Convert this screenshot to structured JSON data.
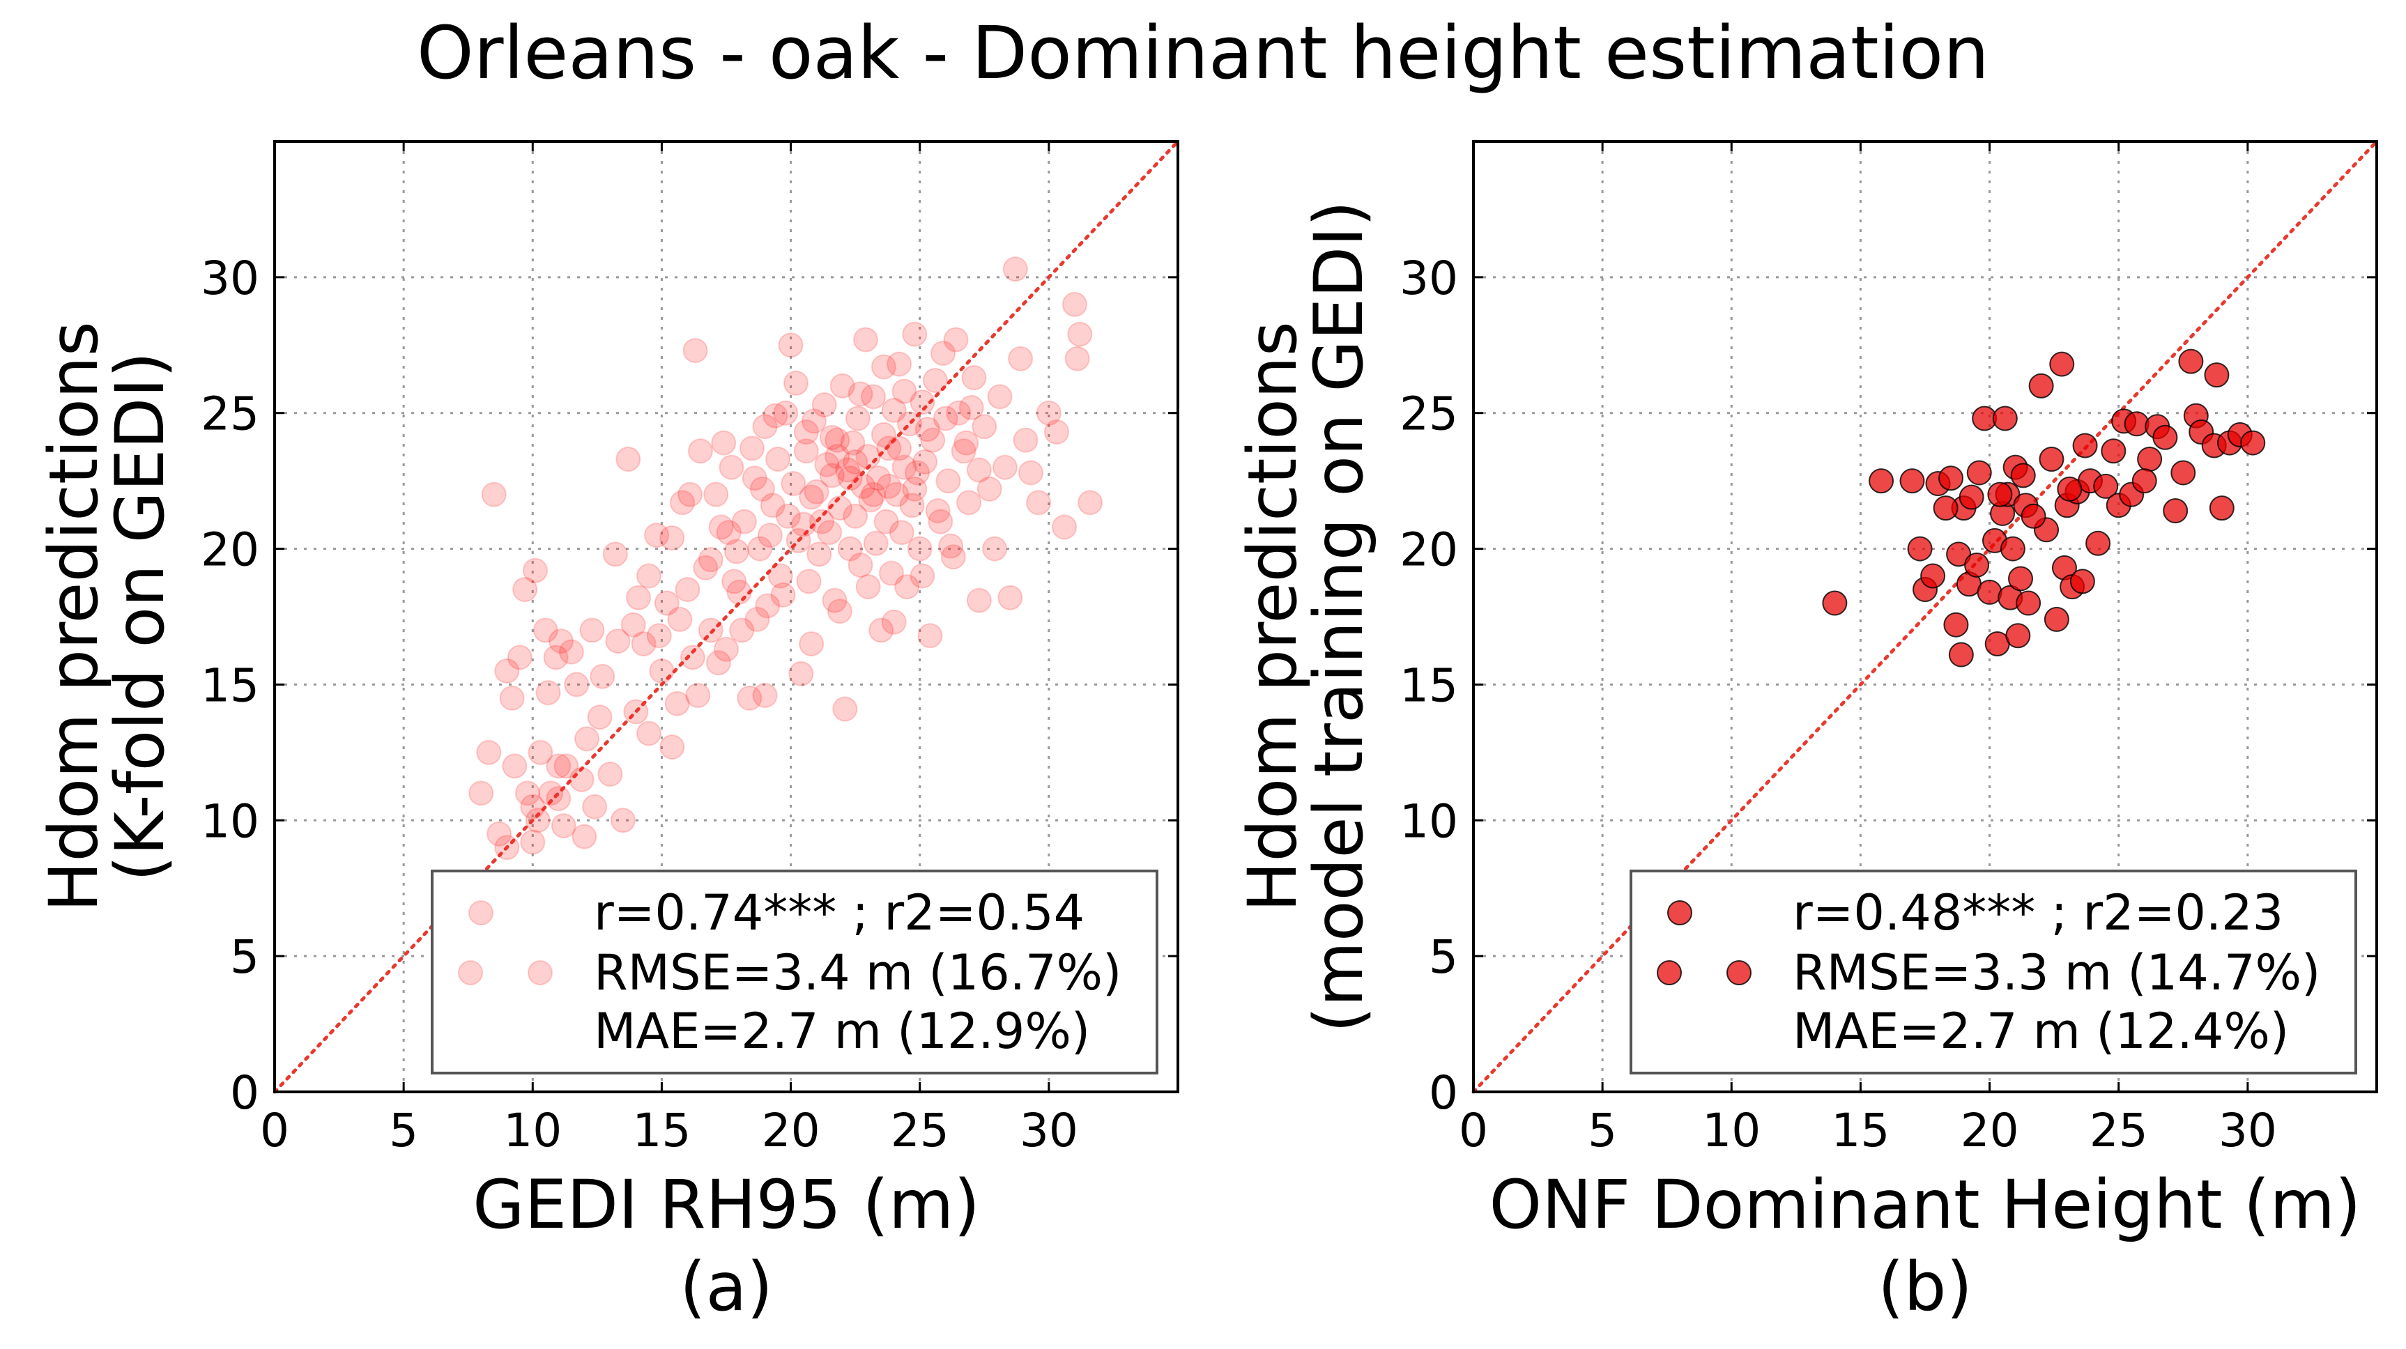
{
  "figure_title": "Orleans - oak - Dominant height estimation",
  "chart_data": [
    {
      "type": "scatter",
      "panel_label": "(a)",
      "title": "",
      "xlabel": "GEDI RH95 (m)",
      "ylabel_line1": "Hdom predictions",
      "ylabel_line2": "(K-fold on GEDI)",
      "xlim": [
        0,
        35
      ],
      "ylim": [
        0,
        35
      ],
      "xticks": [
        0,
        5,
        10,
        15,
        20,
        25,
        30
      ],
      "yticks": [
        0,
        5,
        10,
        15,
        20,
        25,
        30
      ],
      "grid": true,
      "identity_line": true,
      "marker_color": "#ff2a2a",
      "marker_opacity": 0.22,
      "legend_position": "lower-right",
      "legend": {
        "line1": "r=0.74*** ; r2=0.54",
        "line2": "RMSE=3.4 m (16.7%)",
        "line3": "MAE=2.7 m (12.9%)"
      },
      "points": [
        [
          8.5,
          22.0
        ],
        [
          8.0,
          11.0
        ],
        [
          8.3,
          12.5
        ],
        [
          8.7,
          9.5
        ],
        [
          9.0,
          9.0
        ],
        [
          9.0,
          15.5
        ],
        [
          9.2,
          14.5
        ],
        [
          9.3,
          12.0
        ],
        [
          9.5,
          16.0
        ],
        [
          9.7,
          18.5
        ],
        [
          9.8,
          11.0
        ],
        [
          10.0,
          10.5
        ],
        [
          10.0,
          9.2
        ],
        [
          10.1,
          19.2
        ],
        [
          10.2,
          10.0
        ],
        [
          10.3,
          12.5
        ],
        [
          10.5,
          17.0
        ],
        [
          10.6,
          14.7
        ],
        [
          10.7,
          11.0
        ],
        [
          10.9,
          16.0
        ],
        [
          11.0,
          12.0
        ],
        [
          11.0,
          10.8
        ],
        [
          11.1,
          16.6
        ],
        [
          11.2,
          9.8
        ],
        [
          11.3,
          12.0
        ],
        [
          11.5,
          16.2
        ],
        [
          11.7,
          15.0
        ],
        [
          11.9,
          11.5
        ],
        [
          12.0,
          9.4
        ],
        [
          12.1,
          13.0
        ],
        [
          12.3,
          17.0
        ],
        [
          12.4,
          10.5
        ],
        [
          12.7,
          15.3
        ],
        [
          13.0,
          11.7
        ],
        [
          13.2,
          19.8
        ],
        [
          13.5,
          10.0
        ],
        [
          13.7,
          23.3
        ],
        [
          13.9,
          17.2
        ],
        [
          14.0,
          14.0
        ],
        [
          14.3,
          16.5
        ],
        [
          14.5,
          19.0
        ],
        [
          14.8,
          20.5
        ],
        [
          15.0,
          15.5
        ],
        [
          15.2,
          18.0
        ],
        [
          15.4,
          12.7
        ],
        [
          15.6,
          14.3
        ],
        [
          15.8,
          21.7
        ],
        [
          16.0,
          18.5
        ],
        [
          16.2,
          16.0
        ],
        [
          16.3,
          27.3
        ],
        [
          16.5,
          23.6
        ],
        [
          16.7,
          19.3
        ],
        [
          16.9,
          17.0
        ],
        [
          17.1,
          22.0
        ],
        [
          17.3,
          20.8
        ],
        [
          17.5,
          16.3
        ],
        [
          17.7,
          23.0
        ],
        [
          17.9,
          19.9
        ],
        [
          18.0,
          18.4
        ],
        [
          18.2,
          21.0
        ],
        [
          18.4,
          14.5
        ],
        [
          18.6,
          22.6
        ],
        [
          18.8,
          20.0
        ],
        [
          19.0,
          24.5
        ],
        [
          19.1,
          17.9
        ],
        [
          19.3,
          21.6
        ],
        [
          19.5,
          23.3
        ],
        [
          19.6,
          19.0
        ],
        [
          19.8,
          25.0
        ],
        [
          19.9,
          21.2
        ],
        [
          20.0,
          27.5
        ],
        [
          20.1,
          22.4
        ],
        [
          20.3,
          20.3
        ],
        [
          20.4,
          15.4
        ],
        [
          20.6,
          23.6
        ],
        [
          20.7,
          18.8
        ],
        [
          20.8,
          21.9
        ],
        [
          20.9,
          24.7
        ],
        [
          21.0,
          22.1
        ],
        [
          21.1,
          19.8
        ],
        [
          21.2,
          21.0
        ],
        [
          21.3,
          25.3
        ],
        [
          21.4,
          23.1
        ],
        [
          21.5,
          20.6
        ],
        [
          21.6,
          22.7
        ],
        [
          21.7,
          18.1
        ],
        [
          21.8,
          24.0
        ],
        [
          21.9,
          21.5
        ],
        [
          22.0,
          26.0
        ],
        [
          22.1,
          14.1
        ],
        [
          22.2,
          22.9
        ],
        [
          22.3,
          20.0
        ],
        [
          22.4,
          23.9
        ],
        [
          22.5,
          21.2
        ],
        [
          22.6,
          24.8
        ],
        [
          22.7,
          19.4
        ],
        [
          22.8,
          22.3
        ],
        [
          22.9,
          27.7
        ],
        [
          23.0,
          23.4
        ],
        [
          23.1,
          21.8
        ],
        [
          23.2,
          25.6
        ],
        [
          23.3,
          20.2
        ],
        [
          23.4,
          22.6
        ],
        [
          23.5,
          17.0
        ],
        [
          23.6,
          24.2
        ],
        [
          23.7,
          21.0
        ],
        [
          23.8,
          23.7
        ],
        [
          23.9,
          19.1
        ],
        [
          24.0,
          25.1
        ],
        [
          24.1,
          22.0
        ],
        [
          24.2,
          26.8
        ],
        [
          24.3,
          20.6
        ],
        [
          24.4,
          23.0
        ],
        [
          24.5,
          18.6
        ],
        [
          24.6,
          24.6
        ],
        [
          24.7,
          21.6
        ],
        [
          24.8,
          27.9
        ],
        [
          24.9,
          22.8
        ],
        [
          25.0,
          20.0
        ],
        [
          25.1,
          25.4
        ],
        [
          25.2,
          23.2
        ],
        [
          25.4,
          16.8
        ],
        [
          25.5,
          24.0
        ],
        [
          25.7,
          21.4
        ],
        [
          25.9,
          27.2
        ],
        [
          26.1,
          22.5
        ],
        [
          26.3,
          19.7
        ],
        [
          26.5,
          25.0
        ],
        [
          26.7,
          23.6
        ],
        [
          26.9,
          21.7
        ],
        [
          27.1,
          26.3
        ],
        [
          27.3,
          18.1
        ],
        [
          27.5,
          24.5
        ],
        [
          27.7,
          22.2
        ],
        [
          27.9,
          20.0
        ],
        [
          28.1,
          25.6
        ],
        [
          28.3,
          23.0
        ],
        [
          28.5,
          18.2
        ],
        [
          28.7,
          30.3
        ],
        [
          28.9,
          27.0
        ],
        [
          29.1,
          24.0
        ],
        [
          29.3,
          22.8
        ],
        [
          29.6,
          21.7
        ],
        [
          30.0,
          25.0
        ],
        [
          30.3,
          24.3
        ],
        [
          30.6,
          20.8
        ],
        [
          31.0,
          29.0
        ],
        [
          31.1,
          27.0
        ],
        [
          31.2,
          27.9
        ],
        [
          31.6,
          21.7
        ],
        [
          18.5,
          23.7
        ],
        [
          19.4,
          24.9
        ],
        [
          20.2,
          26.1
        ],
        [
          21.6,
          24.1
        ],
        [
          22.7,
          25.7
        ],
        [
          23.6,
          26.7
        ],
        [
          24.4,
          25.8
        ],
        [
          25.6,
          26.2
        ],
        [
          26.4,
          27.7
        ],
        [
          27.3,
          22.9
        ],
        [
          17.6,
          20.6
        ],
        [
          18.9,
          22.2
        ],
        [
          20.5,
          20.9
        ],
        [
          21.8,
          23.4
        ],
        [
          22.3,
          22.6
        ],
        [
          23.2,
          22.0
        ],
        [
          24.2,
          23.7
        ],
        [
          25.3,
          24.4
        ],
        [
          26.0,
          24.8
        ],
        [
          26.8,
          23.9
        ],
        [
          16.9,
          19.6
        ],
        [
          17.8,
          18.8
        ],
        [
          18.7,
          17.4
        ],
        [
          19.7,
          18.3
        ],
        [
          20.8,
          16.5
        ],
        [
          21.9,
          17.7
        ],
        [
          23.0,
          18.6
        ],
        [
          24.0,
          17.3
        ],
        [
          25.1,
          19.0
        ],
        [
          26.2,
          20.1
        ],
        [
          15.4,
          20.4
        ],
        [
          16.1,
          22.0
        ],
        [
          17.4,
          23.9
        ],
        [
          19.2,
          20.5
        ],
        [
          20.6,
          24.3
        ],
        [
          22.5,
          23.2
        ],
        [
          23.8,
          22.3
        ],
        [
          24.8,
          22.2
        ],
        [
          25.8,
          21.0
        ],
        [
          27.0,
          25.2
        ],
        [
          12.6,
          13.8
        ],
        [
          13.3,
          16.6
        ],
        [
          14.1,
          18.2
        ],
        [
          14.9,
          16.8
        ],
        [
          15.7,
          17.4
        ],
        [
          16.4,
          14.6
        ],
        [
          17.2,
          15.8
        ],
        [
          18.1,
          17.0
        ],
        [
          19.0,
          14.6
        ],
        [
          14.5,
          13.2
        ]
      ]
    },
    {
      "type": "scatter",
      "panel_label": "(b)",
      "title": "",
      "xlabel": "ONF Dominant Height (m)",
      "ylabel_line1": "Hdom predictions",
      "ylabel_line2": "(model training on GEDI)",
      "xlim": [
        0,
        35
      ],
      "ylim": [
        0,
        35
      ],
      "xticks": [
        0,
        5,
        10,
        15,
        20,
        25,
        30
      ],
      "yticks": [
        0,
        5,
        10,
        15,
        20,
        25,
        30
      ],
      "grid": true,
      "identity_line": true,
      "marker_color": "#e60000",
      "marker_opacity": 0.72,
      "legend_position": "lower-right",
      "legend": {
        "line1": "r=0.48*** ; r2=0.23",
        "line2": "RMSE=3.3 m (14.7%)",
        "line3": "MAE=2.7 m (12.4%)"
      },
      "points": [
        [
          14.0,
          18.0
        ],
        [
          15.8,
          22.5
        ],
        [
          17.0,
          22.5
        ],
        [
          17.3,
          20.0
        ],
        [
          17.5,
          18.5
        ],
        [
          17.8,
          19.0
        ],
        [
          18.0,
          22.4
        ],
        [
          18.5,
          22.6
        ],
        [
          18.7,
          17.2
        ],
        [
          18.8,
          19.8
        ],
        [
          18.9,
          16.1
        ],
        [
          19.0,
          21.5
        ],
        [
          19.2,
          18.7
        ],
        [
          19.3,
          21.9
        ],
        [
          19.5,
          19.4
        ],
        [
          19.8,
          24.8
        ],
        [
          20.0,
          18.4
        ],
        [
          20.2,
          20.3
        ],
        [
          20.3,
          16.5
        ],
        [
          20.5,
          21.3
        ],
        [
          20.6,
          24.8
        ],
        [
          20.7,
          22.0
        ],
        [
          20.8,
          18.2
        ],
        [
          20.9,
          20.0
        ],
        [
          21.0,
          23.0
        ],
        [
          21.1,
          16.8
        ],
        [
          21.2,
          18.9
        ],
        [
          21.3,
          22.7
        ],
        [
          21.4,
          21.6
        ],
        [
          21.5,
          18.0
        ],
        [
          22.0,
          26.0
        ],
        [
          22.2,
          20.7
        ],
        [
          22.4,
          23.3
        ],
        [
          22.6,
          17.4
        ],
        [
          22.8,
          26.8
        ],
        [
          22.9,
          19.3
        ],
        [
          23.0,
          21.6
        ],
        [
          23.2,
          18.6
        ],
        [
          23.4,
          22.1
        ],
        [
          23.6,
          18.8
        ],
        [
          23.7,
          23.8
        ],
        [
          23.9,
          22.5
        ],
        [
          24.2,
          20.2
        ],
        [
          24.5,
          22.3
        ],
        [
          25.0,
          21.6
        ],
        [
          25.2,
          24.7
        ],
        [
          25.5,
          22.0
        ],
        [
          25.7,
          24.6
        ],
        [
          26.2,
          23.3
        ],
        [
          26.5,
          24.5
        ],
        [
          26.8,
          24.1
        ],
        [
          27.2,
          21.4
        ],
        [
          27.5,
          22.8
        ],
        [
          27.8,
          26.9
        ],
        [
          28.0,
          24.9
        ],
        [
          28.2,
          24.3
        ],
        [
          28.7,
          23.8
        ],
        [
          28.8,
          26.4
        ],
        [
          29.0,
          21.5
        ],
        [
          29.3,
          23.9
        ],
        [
          29.7,
          24.2
        ],
        [
          30.2,
          23.9
        ],
        [
          19.6,
          22.8
        ],
        [
          20.4,
          22.0
        ],
        [
          21.7,
          21.2
        ],
        [
          23.1,
          22.2
        ],
        [
          24.8,
          23.6
        ],
        [
          26.0,
          22.5
        ],
        [
          18.3,
          21.5
        ]
      ]
    }
  ]
}
